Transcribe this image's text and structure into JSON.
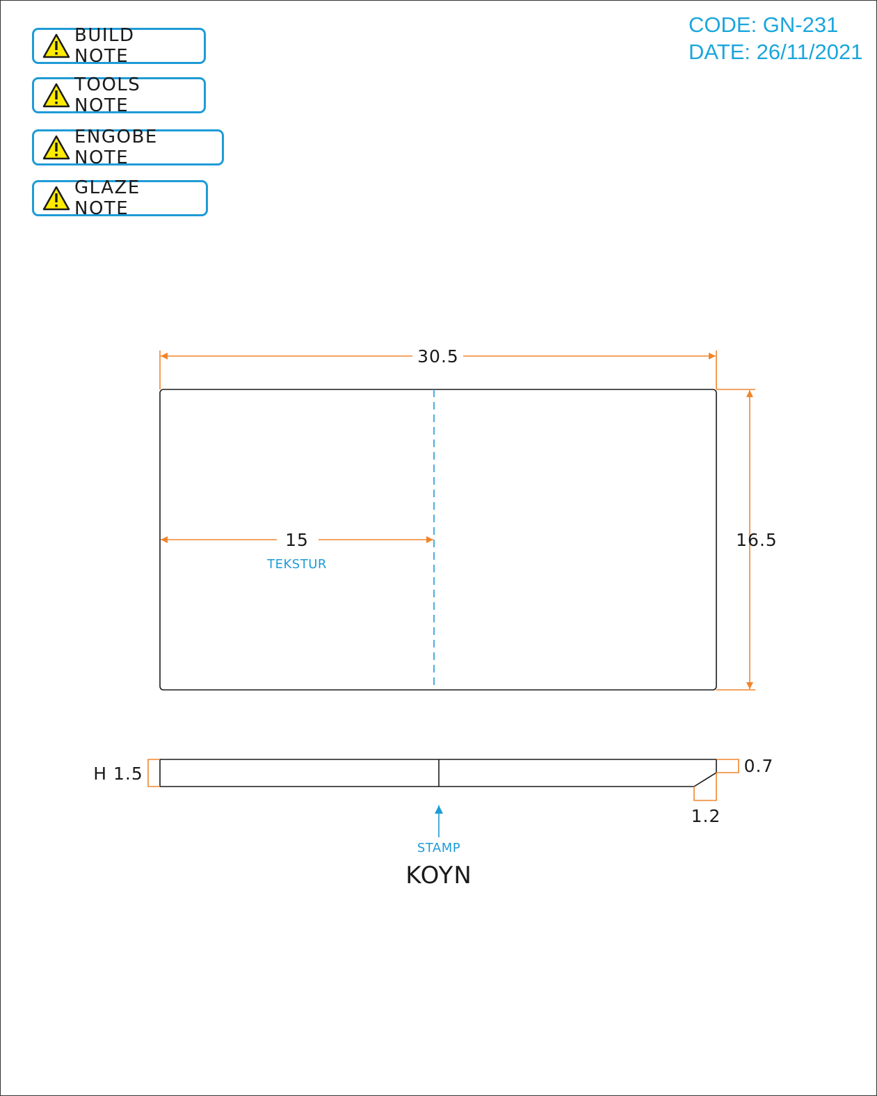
{
  "notes": [
    {
      "label": "BUILD NOTE"
    },
    {
      "label": "TOOLS NOTE"
    },
    {
      "label": "ENGOBE NOTE"
    },
    {
      "label": "GLAZE NOTE"
    }
  ],
  "header": {
    "code": "CODE: GN-231",
    "date": "DATE: 26/11/2021"
  },
  "drawing": {
    "width_dim": "30.5",
    "height_dim": "16.5",
    "texture_dim": "15",
    "texture_label": "TEKSTUR",
    "thickness_dim": "H 1.5",
    "edge_dim": "0.7",
    "chamfer_dim": "1.2",
    "stamp_label": "STAMP",
    "stamp_text": "KOYN"
  },
  "colors": {
    "dimension": "#f0852d",
    "accent": "#1e9bd6",
    "outline": "#1a1a1a",
    "warning": "#ffeb00"
  }
}
